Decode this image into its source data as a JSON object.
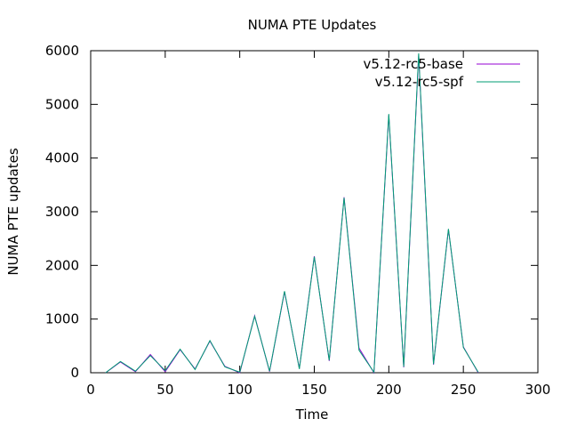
{
  "chart_data": {
    "type": "line",
    "title": "NUMA PTE Updates",
    "xlabel": "Time",
    "ylabel": "NUMA PTE updates",
    "xlim": [
      0,
      300
    ],
    "ylim": [
      0,
      6000
    ],
    "xticks": [
      0,
      50,
      100,
      150,
      200,
      250,
      300
    ],
    "yticks": [
      0,
      1000,
      2000,
      3000,
      4000,
      5000,
      6000
    ],
    "grid": false,
    "legend_position": "top-right",
    "series": [
      {
        "name": "v5.12-rc5-base",
        "color": "#9400d3",
        "x": [
          10,
          20,
          30,
          40,
          50,
          60,
          70,
          80,
          90,
          100,
          110,
          120,
          130,
          140,
          150,
          160,
          170,
          180,
          190,
          200,
          210,
          220,
          230,
          240,
          250,
          260
        ],
        "y": [
          0,
          200,
          20,
          340,
          20,
          430,
          70,
          590,
          120,
          0,
          1060,
          20,
          1510,
          80,
          2170,
          220,
          3270,
          460,
          0,
          4800,
          100,
          5920,
          150,
          2670,
          480,
          0
        ]
      },
      {
        "name": "v5.12-rc5-spf",
        "color": "#009e73",
        "x": [
          10,
          20,
          30,
          40,
          50,
          60,
          70,
          80,
          90,
          100,
          110,
          120,
          130,
          140,
          150,
          160,
          170,
          180,
          190,
          200,
          210,
          220,
          230,
          240,
          250,
          260
        ],
        "y": [
          0,
          210,
          30,
          320,
          40,
          440,
          60,
          600,
          110,
          10,
          1050,
          30,
          1520,
          70,
          2160,
          230,
          3260,
          420,
          10,
          4820,
          110,
          5950,
          160,
          2680,
          470,
          10
        ]
      }
    ]
  }
}
